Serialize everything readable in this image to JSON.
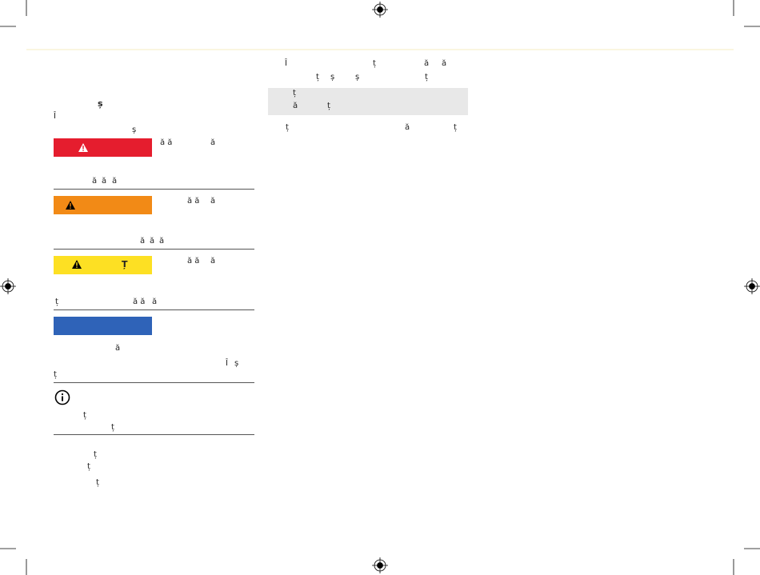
{
  "left": {
    "heading": "ș",
    "intro": [
      "Î",
      "ș"
    ],
    "danger": {
      "side": [
        "ă ă",
        "ă"
      ],
      "body": [
        "ă",
        "ă",
        "ă"
      ]
    },
    "warning": {
      "side": [
        "ă ă",
        "ă"
      ],
      "body": [
        "ă",
        "ă",
        "ă"
      ]
    },
    "caution": {
      "label": "Ț",
      "side": [
        "ă ă",
        "ă"
      ],
      "body": [
        "ț",
        "ă ă",
        "ă"
      ]
    },
    "notice": {
      "body": [
        "ă",
        "Î",
        "ș",
        "ț"
      ]
    },
    "info": {
      "body": [
        "ț",
        "ț"
      ]
    },
    "list": [
      "ț",
      "ț",
      "ț"
    ]
  },
  "right": {
    "para_1": [
      "Î",
      "ț",
      "ă",
      "ă"
    ],
    "para_2": [
      "ț",
      "ș",
      "ș",
      "ț"
    ],
    "highlight": [
      "ț",
      "ă",
      "ț"
    ],
    "para_3": [
      "ț",
      "ă",
      "ț"
    ]
  }
}
